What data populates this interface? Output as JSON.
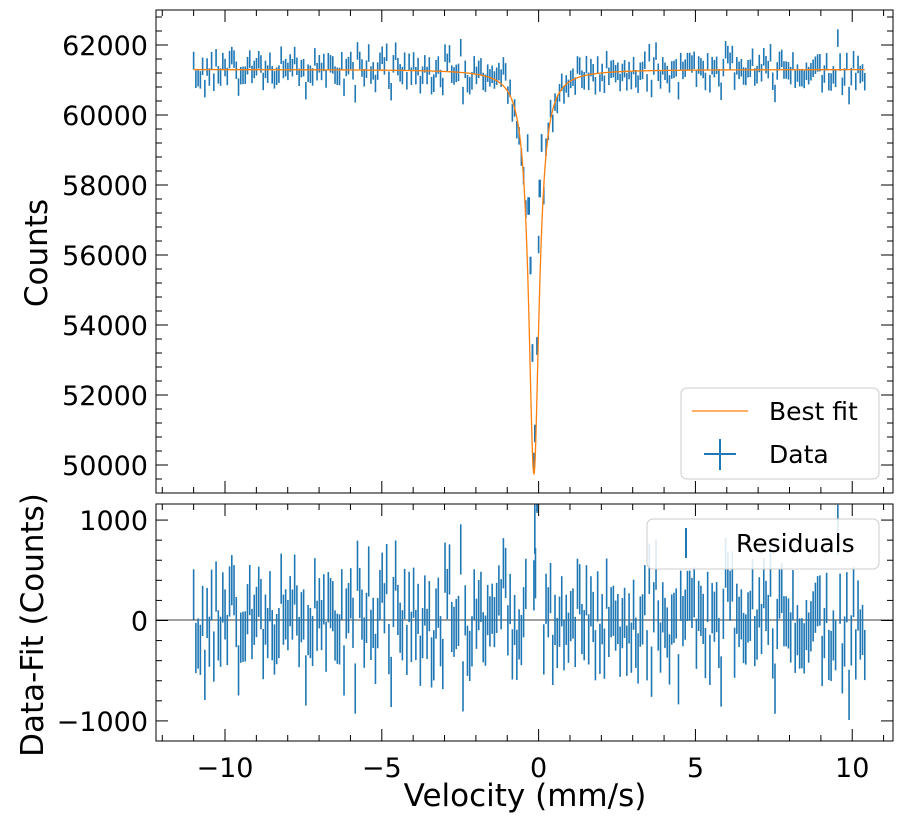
{
  "chart_data": [
    {
      "type": "scatter",
      "title": "",
      "xlabel": "",
      "ylabel": "Counts",
      "xlim": [
        -12.2,
        11.3
      ],
      "ylim": [
        49200,
        63000
      ],
      "x_ticks": [
        -10,
        -5,
        0,
        5,
        10
      ],
      "y_ticks": [
        50000,
        52000,
        54000,
        56000,
        58000,
        60000,
        62000
      ],
      "y_tick_labels": [
        "50000",
        "52000",
        "54000",
        "56000",
        "58000",
        "60000",
        "62000"
      ],
      "grid": false,
      "legend": {
        "placement": "bottom-right",
        "entries": [
          "Best fit",
          "Data"
        ]
      },
      "series": [
        {
          "name": "Best fit",
          "style": "line",
          "color": "#ff7f0e",
          "model": "lorentzian",
          "baseline": 61300,
          "depth": 11550,
          "center": -0.15,
          "hwhm": 0.2,
          "x_range": [
            -11.0,
            10.4
          ]
        },
        {
          "name": "Data",
          "style": "errorbar",
          "color": "#1f77b4",
          "x_range": [
            -11.0,
            10.4
          ],
          "n_points": 300,
          "y_error": 250,
          "residual_scatter": 280,
          "points": [
            [
              -0.35,
              59200
            ],
            [
              -0.3,
              57400
            ],
            [
              -0.25,
              55700
            ],
            [
              -0.2,
              53200
            ],
            [
              -0.15,
              50100
            ],
            [
              -0.1,
              50900
            ],
            [
              -0.05,
              53400
            ],
            [
              0.0,
              56300
            ],
            [
              0.05,
              57900
            ],
            [
              0.1,
              59200
            ]
          ]
        }
      ]
    },
    {
      "type": "scatter",
      "title": "",
      "xlabel": "Velocity (mm/s)",
      "ylabel": "Data-Fit (Counts)",
      "xlim": [
        -12.2,
        11.3
      ],
      "ylim": [
        -1200,
        1160
      ],
      "x_ticks": [
        -10,
        -5,
        0,
        5,
        10
      ],
      "x_tick_labels": [
        "−10",
        "−5",
        "0",
        "5",
        "10"
      ],
      "y_ticks": [
        -1000,
        0,
        1000
      ],
      "y_tick_labels": [
        "−1000",
        "0",
        "1000"
      ],
      "zero_line": true,
      "grid": false,
      "legend": {
        "placement": "top-right",
        "entries": [
          "Residuals"
        ]
      },
      "series": [
        {
          "name": "Residuals",
          "style": "errorbar",
          "color": "#1f77b4",
          "x_range": [
            -11.0,
            10.4
          ],
          "n_points": 300,
          "y_error": 250
        }
      ]
    }
  ]
}
